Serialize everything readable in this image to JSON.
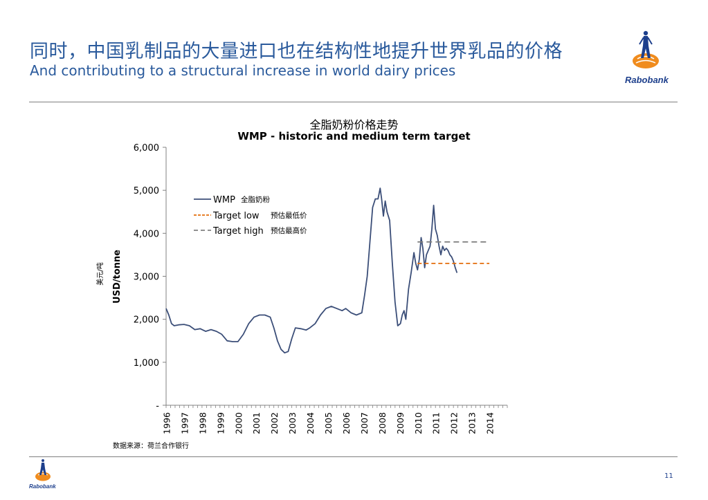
{
  "slide": {
    "title_cn": "同时，中国乳制品的大量进口也在结构性地提升世界乳品的价格",
    "title_en": "And contributing to a structural increase in world dairy prices",
    "brand": "Rabobank",
    "source": "数据来源：荷兰合作银行",
    "page_number": "11"
  },
  "colors": {
    "title": "#2a5a9c",
    "wmp_line": "#3b4e78",
    "target_low": "#e36c0a",
    "target_high": "#808080",
    "brand_blue": "#1d3f8c",
    "brand_orange": "#f08c1e"
  },
  "chart_data": {
    "type": "line",
    "title": "全脂奶粉价格走势",
    "subtitle": "WMP - historic and medium term target",
    "ylabel": "USD/tonne",
    "ylabel_cn": "美元/吨",
    "ylim": [
      0,
      6000
    ],
    "yticks": [
      0,
      1000,
      2000,
      3000,
      4000,
      5000,
      6000
    ],
    "ytick_labels": [
      "-",
      "1,000",
      "2,000",
      "3,000",
      "4,000",
      "5,000",
      "6,000"
    ],
    "xlim": [
      1996,
      2015
    ],
    "xticks": [
      "1996",
      "1997",
      "1998",
      "1999",
      "2000",
      "2001",
      "2002",
      "2003",
      "2004",
      "2005",
      "2006",
      "2007",
      "2008",
      "2009",
      "2010",
      "2011",
      "2012",
      "2013",
      "2014"
    ],
    "grid": false,
    "legend": {
      "placement": "top-left",
      "entries": [
        {
          "label": "WMP",
          "label_cn": "全脂奶粉"
        },
        {
          "label": "Target low",
          "label_cn": "预估最低价"
        },
        {
          "label": "Target high",
          "label_cn": "预估最高价"
        }
      ]
    },
    "series": [
      {
        "name": "WMP",
        "style": "solid",
        "x": [
          1996.0,
          1996.15,
          1996.3,
          1996.45,
          1996.7,
          1997.0,
          1997.3,
          1997.6,
          1997.9,
          1998.2,
          1998.5,
          1998.8,
          1999.1,
          1999.4,
          1999.7,
          2000.0,
          2000.3,
          2000.6,
          2000.9,
          2001.2,
          2001.5,
          2001.8,
          2002.0,
          2002.2,
          2002.4,
          2002.6,
          2002.8,
          2003.0,
          2003.2,
          2003.5,
          2003.8,
          2004.0,
          2004.3,
          2004.6,
          2004.9,
          2005.2,
          2005.5,
          2005.8,
          2006.0,
          2006.3,
          2006.6,
          2006.9,
          2007.05,
          2007.2,
          2007.35,
          2007.5,
          2007.65,
          2007.8,
          2007.92,
          2008.0,
          2008.1,
          2008.2,
          2008.3,
          2008.45,
          2008.6,
          2008.75,
          2008.9,
          2009.05,
          2009.15,
          2009.25,
          2009.35,
          2009.5,
          2009.65,
          2009.8,
          2009.9,
          2010.0,
          2010.1,
          2010.2,
          2010.3,
          2010.4,
          2010.5,
          2010.6,
          2010.7,
          2010.8,
          2010.9,
          2011.0,
          2011.1,
          2011.2,
          2011.3,
          2011.4,
          2011.5,
          2011.6,
          2011.7,
          2011.8,
          2011.9,
          2012.0,
          2012.1,
          2012.2
        ],
        "y": [
          2250,
          2100,
          1900,
          1850,
          1870,
          1880,
          1850,
          1760,
          1780,
          1720,
          1760,
          1720,
          1650,
          1500,
          1480,
          1480,
          1650,
          1900,
          2050,
          2100,
          2100,
          2050,
          1800,
          1500,
          1300,
          1220,
          1250,
          1550,
          1800,
          1780,
          1750,
          1800,
          1900,
          2100,
          2250,
          2300,
          2250,
          2200,
          2250,
          2150,
          2100,
          2150,
          2550,
          3000,
          3800,
          4600,
          4800,
          4800,
          5050,
          4800,
          4400,
          4750,
          4500,
          4300,
          3300,
          2400,
          1850,
          1900,
          2100,
          2200,
          2000,
          2700,
          3100,
          3550,
          3300,
          3150,
          3400,
          3900,
          3650,
          3200,
          3500,
          3600,
          3700,
          4100,
          4650,
          4100,
          3950,
          3700,
          3500,
          3700,
          3600,
          3650,
          3600,
          3500,
          3450,
          3350,
          3200,
          3080
        ]
      },
      {
        "name": "Target low",
        "style": "dashed",
        "x": [
          2010.0,
          2014.0
        ],
        "y": [
          3300,
          3300
        ]
      },
      {
        "name": "Target high",
        "style": "dashed",
        "x": [
          2010.0,
          2014.0
        ],
        "y": [
          3800,
          3800
        ]
      }
    ]
  }
}
